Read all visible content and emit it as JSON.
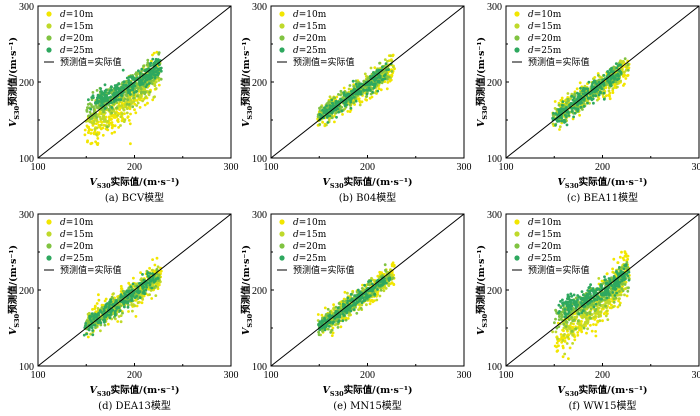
{
  "figure": {
    "legend_labels": [
      "d=10m",
      "d=15m",
      "d=20m",
      "d=25m",
      "预测值=实际值"
    ],
    "series_colors": [
      "#f2e600",
      "#bfd92a",
      "#80c341",
      "#2ea85f"
    ],
    "line_color": "#000000"
  },
  "chart_data": [
    {
      "type": "scatter",
      "caption": "(a) BCV模型",
      "xlabel": "V_S30实际值/(m·s⁻¹)",
      "ylabel": "V_S30预测值/(m·s⁻¹)",
      "xlim": [
        100,
        300
      ],
      "ylim": [
        100,
        300
      ],
      "xticks": [
        100,
        200,
        300
      ],
      "yticks": [
        100,
        200,
        300
      ],
      "series": [
        {
          "name": "d=10m",
          "centers": [
            [
              160,
              140
            ],
            [
              175,
              155
            ],
            [
              190,
              170
            ],
            [
              205,
              185
            ],
            [
              215,
              200
            ]
          ],
          "spread": [
            6,
            14
          ]
        },
        {
          "name": "d=15m",
          "centers": [
            [
              165,
              160
            ],
            [
              180,
              170
            ],
            [
              195,
              180
            ],
            [
              210,
              195
            ],
            [
              220,
              210
            ]
          ],
          "spread": [
            6,
            11
          ]
        },
        {
          "name": "d=20m",
          "centers": [
            [
              160,
              170
            ],
            [
              175,
              178
            ],
            [
              190,
              188
            ],
            [
              205,
              198
            ],
            [
              220,
              212
            ]
          ],
          "spread": [
            6,
            9
          ]
        },
        {
          "name": "d=25m",
          "centers": [
            [
              165,
              180
            ],
            [
              180,
              185
            ],
            [
              195,
              195
            ],
            [
              210,
              205
            ],
            [
              222,
              218
            ]
          ],
          "spread": [
            5,
            7
          ]
        }
      ],
      "reference_line": "y=x",
      "legend_position": "top-left"
    },
    {
      "type": "scatter",
      "caption": "(b) B04模型",
      "xlabel": "V_S30实际值/(m·s⁻¹)",
      "ylabel": "V_S30预测值/(m·s⁻¹)",
      "xlim": [
        100,
        300
      ],
      "ylim": [
        100,
        300
      ],
      "xticks": [
        100,
        200,
        300
      ],
      "yticks": [
        100,
        200,
        300
      ],
      "series": [
        {
          "name": "d=10m",
          "centers": [
            [
              160,
              163
            ],
            [
              180,
              178
            ],
            [
              200,
              195
            ],
            [
              215,
              208
            ],
            [
              225,
              215
            ]
          ],
          "spread": [
            7,
            8
          ]
        },
        {
          "name": "d=15m",
          "centers": [
            [
              160,
              162
            ],
            [
              180,
              180
            ],
            [
              200,
              197
            ],
            [
              215,
              210
            ]
          ],
          "spread": [
            6,
            7
          ]
        },
        {
          "name": "d=20m",
          "centers": [
            [
              160,
              165
            ],
            [
              178,
              178
            ],
            [
              195,
              192
            ],
            [
              212,
              207
            ]
          ],
          "spread": [
            6,
            6
          ]
        },
        {
          "name": "d=25m",
          "centers": [
            [
              158,
              160
            ],
            [
              175,
              175
            ],
            [
              192,
              190
            ],
            [
              210,
              205
            ]
          ],
          "spread": [
            6,
            6
          ]
        }
      ],
      "reference_line": "y=x",
      "legend_position": "top-left"
    },
    {
      "type": "scatter",
      "caption": "(c) BEA11模型",
      "xlabel": "V_S30实际值/(m·s⁻¹)",
      "ylabel": "V_S30预测值/(m·s⁻¹)",
      "xlim": [
        100,
        300
      ],
      "ylim": [
        100,
        300
      ],
      "xticks": [
        100,
        200,
        300
      ],
      "yticks": [
        100,
        200,
        300
      ],
      "series": [
        {
          "name": "d=10m",
          "centers": [
            [
              160,
              165
            ],
            [
              180,
              180
            ],
            [
              200,
              195
            ],
            [
              215,
              208
            ],
            [
              225,
              215
            ]
          ],
          "spread": [
            7,
            9
          ]
        },
        {
          "name": "d=15m",
          "centers": [
            [
              160,
              162
            ],
            [
              180,
              178
            ],
            [
              200,
              195
            ],
            [
              215,
              210
            ]
          ],
          "spread": [
            6,
            7
          ]
        },
        {
          "name": "d=20m",
          "centers": [
            [
              158,
              160
            ],
            [
              176,
              176
            ],
            [
              194,
              192
            ],
            [
              212,
              208
            ]
          ],
          "spread": [
            6,
            6
          ]
        },
        {
          "name": "d=25m",
          "centers": [
            [
              158,
              158
            ],
            [
              175,
              174
            ],
            [
              192,
              190
            ],
            [
              210,
              206
            ]
          ],
          "spread": [
            6,
            6
          ]
        }
      ],
      "reference_line": "y=x",
      "legend_position": "top-left"
    },
    {
      "type": "scatter",
      "caption": "(d) DEA13模型",
      "xlabel": "V_S30实际值/(m·s⁻¹)",
      "ylabel": "V_S30预测值/(m·s⁻¹)",
      "xlim": [
        100,
        300
      ],
      "ylim": [
        100,
        300
      ],
      "xticks": [
        100,
        200,
        300
      ],
      "yticks": [
        100,
        200,
        300
      ],
      "series": [
        {
          "name": "d=10m",
          "centers": [
            [
              160,
              165
            ],
            [
              180,
              180
            ],
            [
              200,
              195
            ],
            [
              215,
              210
            ],
            [
              225,
              218
            ]
          ],
          "spread": [
            7,
            9
          ]
        },
        {
          "name": "d=15m",
          "centers": [
            [
              160,
              162
            ],
            [
              180,
              178
            ],
            [
              200,
              196
            ],
            [
              218,
              212
            ]
          ],
          "spread": [
            6,
            7
          ]
        },
        {
          "name": "d=20m",
          "centers": [
            [
              158,
              160
            ],
            [
              177,
              176
            ],
            [
              196,
              193
            ],
            [
              214,
              209
            ]
          ],
          "spread": [
            6,
            6
          ]
        },
        {
          "name": "d=25m",
          "centers": [
            [
              158,
              158
            ],
            [
              175,
              174
            ],
            [
              193,
              191
            ],
            [
              212,
              207
            ]
          ],
          "spread": [
            6,
            6
          ]
        }
      ],
      "reference_line": "y=x",
      "legend_position": "top-left"
    },
    {
      "type": "scatter",
      "caption": "(e) MN15模型",
      "xlabel": "V_S30实际值/(m·s⁻¹)",
      "ylabel": "V_S30预测值/(m·s⁻¹)",
      "xlim": [
        100,
        300
      ],
      "ylim": [
        100,
        300
      ],
      "xticks": [
        100,
        200,
        300
      ],
      "yticks": [
        100,
        200,
        300
      ],
      "series": [
        {
          "name": "d=10m",
          "centers": [
            [
              160,
              160
            ],
            [
              180,
              178
            ],
            [
              200,
              196
            ],
            [
              215,
              210
            ],
            [
              225,
              220
            ]
          ],
          "spread": [
            6,
            8
          ]
        },
        {
          "name": "d=15m",
          "centers": [
            [
              160,
              160
            ],
            [
              180,
              178
            ],
            [
              200,
              197
            ],
            [
              218,
              213
            ]
          ],
          "spread": [
            6,
            6
          ]
        },
        {
          "name": "d=20m",
          "centers": [
            [
              158,
              158
            ],
            [
              177,
              176
            ],
            [
              196,
              194
            ],
            [
              214,
              210
            ]
          ],
          "spread": [
            6,
            6
          ]
        },
        {
          "name": "d=25m",
          "centers": [
            [
              157,
              157
            ],
            [
              175,
              174
            ],
            [
              193,
              191
            ],
            [
              212,
              208
            ]
          ],
          "spread": [
            6,
            5
          ]
        }
      ],
      "reference_line": "y=x",
      "legend_position": "top-left"
    },
    {
      "type": "scatter",
      "caption": "(f) WW15模型",
      "xlabel": "V_S30实际值/(m·s⁻¹)",
      "ylabel": "V_S30预测值/(m·s⁻¹)",
      "xlim": [
        100,
        300
      ],
      "ylim": [
        100,
        300
      ],
      "xticks": [
        100,
        200,
        300
      ],
      "yticks": [
        100,
        200,
        300
      ],
      "series": [
        {
          "name": "d=10m",
          "centers": [
            [
              160,
              140
            ],
            [
              175,
              155
            ],
            [
              190,
              170
            ],
            [
              205,
              190
            ],
            [
              218,
              210
            ],
            [
              225,
              232
            ]
          ],
          "spread": [
            6,
            14
          ]
        },
        {
          "name": "d=15m",
          "centers": [
            [
              165,
              158
            ],
            [
              180,
              170
            ],
            [
              195,
              182
            ],
            [
              210,
              198
            ],
            [
              222,
              218
            ]
          ],
          "spread": [
            6,
            11
          ]
        },
        {
          "name": "d=20m",
          "centers": [
            [
              160,
              168
            ],
            [
              175,
              176
            ],
            [
              190,
              186
            ],
            [
              205,
              198
            ],
            [
              220,
              214
            ]
          ],
          "spread": [
            6,
            9
          ]
        },
        {
          "name": "d=25m",
          "centers": [
            [
              165,
              180
            ],
            [
              180,
              186
            ],
            [
              195,
              195
            ],
            [
              210,
              206
            ],
            [
              222,
              220
            ]
          ],
          "spread": [
            5,
            7
          ]
        }
      ],
      "reference_line": "y=x",
      "legend_position": "top-left"
    }
  ]
}
